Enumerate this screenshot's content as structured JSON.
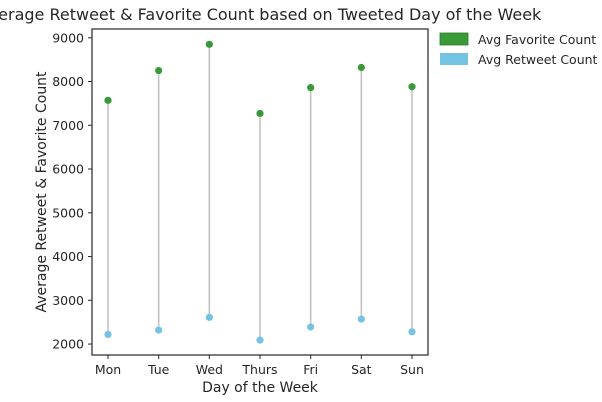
{
  "chart_data": {
    "type": "scatter",
    "title": "Average Retweet & Favorite Count based on Tweeted Day of the Week",
    "xlabel": "Day of the Week",
    "ylabel": "Average Retweet & Favorite Count",
    "categories": [
      "Mon",
      "Tue",
      "Wed",
      "Thurs",
      "Fri",
      "Sat",
      "Sun"
    ],
    "series": [
      {
        "name": "Avg Favorite Count",
        "color": "#3a9a3a",
        "values": [
          7570,
          8250,
          8850,
          7270,
          7860,
          8320,
          7880
        ]
      },
      {
        "name": "Avg Retweet Count",
        "color": "#74c3e3",
        "values": [
          2220,
          2320,
          2610,
          2090,
          2390,
          2570,
          2280
        ]
      }
    ],
    "connector_color": "#c3c3c3",
    "yticks": [
      2000,
      3000,
      4000,
      5000,
      6000,
      7000,
      8000,
      9000
    ],
    "ylim": [
      1750,
      9200
    ],
    "grid": false,
    "legend_position": "outside-upper-right"
  }
}
